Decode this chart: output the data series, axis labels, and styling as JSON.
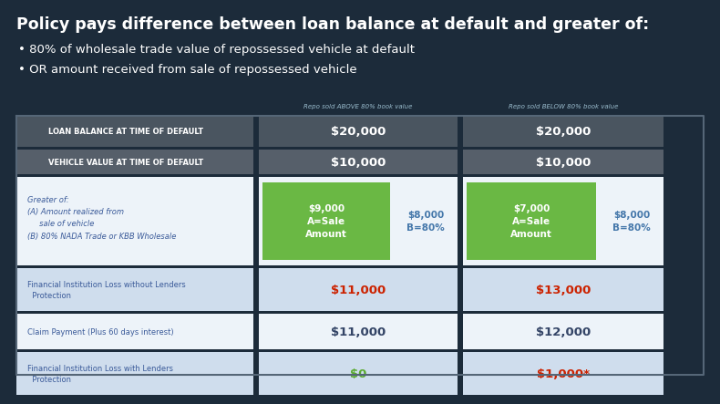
{
  "title_line1": "Policy pays difference between loan balance at default and greater of:",
  "bullet1": "80% of wholesale trade value of repossessed vehicle at default",
  "bullet2": "OR amount received from sale of repossessed vehicle",
  "col_header1": "Repo sold ABOVE 80% book value",
  "col_header2": "Repo sold BELOW 80% book value",
  "rows": [
    {
      "label": "LOAN BALANCE AT TIME OF DEFAULT",
      "val1": "$20,000",
      "val2": "$20,000",
      "style": "dark_header"
    },
    {
      "label": "VEHICLE VALUE AT TIME OF DEFAULT",
      "val1": "$10,000",
      "val2": "$10,000",
      "style": "dark_header2"
    },
    {
      "label": "Greater of:\n(A) Amount realized from\n     sale of vehicle\n(B) 80% NADA Trade or KBB Wholesale",
      "val1_a": "$9,000\nA=Sale\nAmount",
      "val1_b": "$8,000\nB=80%",
      "val2_a": "$7,000\nA=Sale\nAmount",
      "val2_b": "$8,000\nB=80%",
      "style": "green_box"
    },
    {
      "label": "Financial Institution Loss without Lenders\n  Protection",
      "val1": "$11,000",
      "val2": "$13,000",
      "style": "light_red",
      "val1_color": "#cc2200",
      "val2_color": "#cc2200"
    },
    {
      "label": "Claim Payment (Plus 60 days interest)",
      "val1": "$11,000",
      "val2": "$12,000",
      "style": "light_normal",
      "val1_color": "#334466",
      "val2_color": "#334466"
    },
    {
      "label": "Financial Institution Loss with Lenders\n  Protection",
      "val1": "$0",
      "val2": "$1,000*",
      "style": "light_green_red",
      "val1_color": "#5aaa30",
      "val2_color": "#cc2200"
    }
  ],
  "bg_dark": "#1c2b3a",
  "header_dark1": "#4a5560",
  "header_dark2": "#565f6a",
  "cell_blue1": "#cfdded",
  "cell_blue2": "#e0eaf4",
  "cell_white": "#edf3f9",
  "green_box_bg": "#edf3f9",
  "green": "#6ab844",
  "blue_text": "#4477aa",
  "label_text": "#3a5a99",
  "white": "#ffffff",
  "col_header_color": "#99bbcc"
}
